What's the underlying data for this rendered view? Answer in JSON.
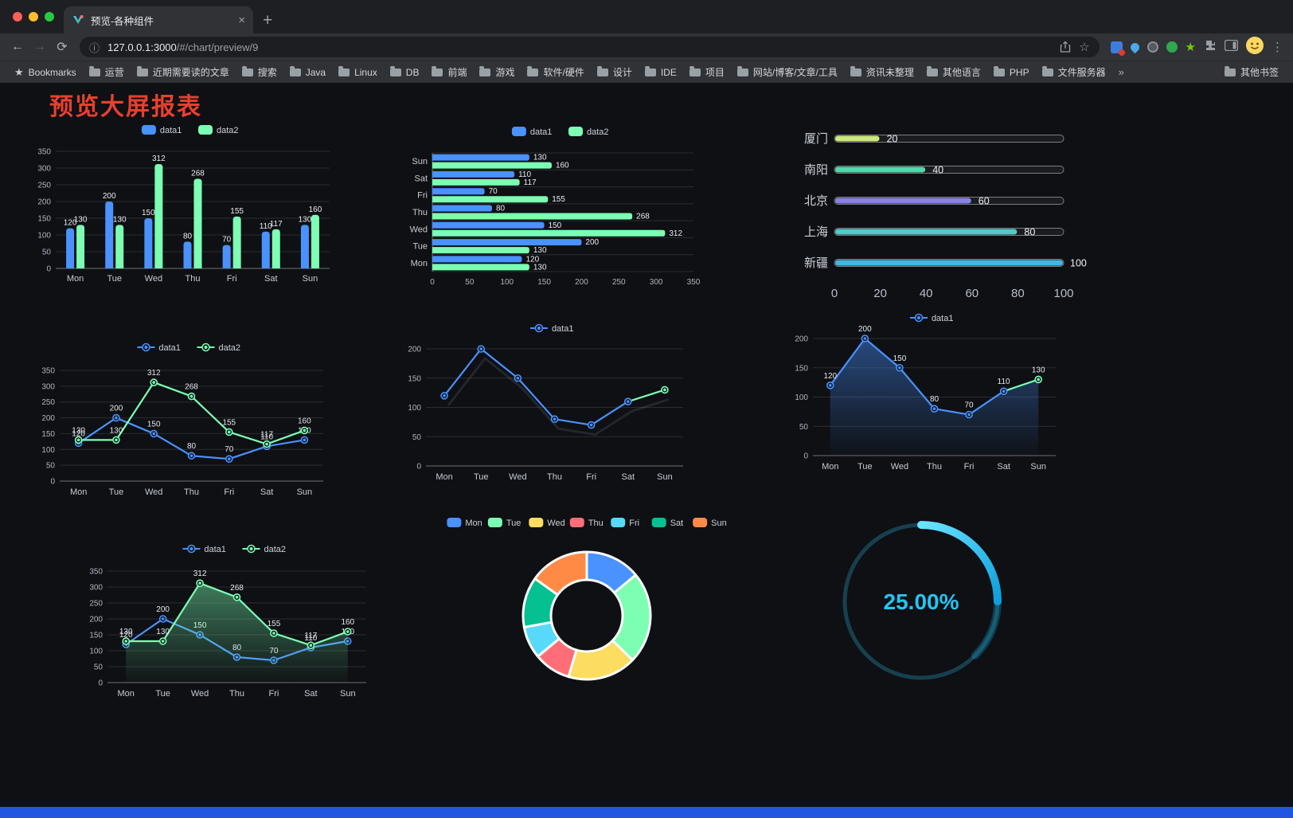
{
  "browser": {
    "tab": {
      "title": "预览-各种组件"
    },
    "url_host": "127.0.0.1:3000",
    "url_path": "/#/chart/preview/9",
    "bookmarks": {
      "label": "Bookmarks",
      "items": [
        "运营",
        "近期需要读的文章",
        "搜索",
        "Java",
        "Linux",
        "DB",
        "前端",
        "游戏",
        "软件/硬件",
        "设计",
        "IDE",
        "项目",
        "网站/博客/文章/工具",
        "资讯未整理",
        "其他语言",
        "PHP",
        "文件服务器"
      ],
      "overflow": "»",
      "other": "其他书签"
    }
  },
  "page": {
    "title": "预览大屏报表"
  },
  "chart_data": [
    {
      "type": "bar",
      "legend": [
        "data1",
        "data2"
      ],
      "categories": [
        "Mon",
        "Tue",
        "Wed",
        "Thu",
        "Fri",
        "Sat",
        "Sun"
      ],
      "series": [
        {
          "name": "data1",
          "color": "#4992ff",
          "values": [
            120,
            200,
            150,
            80,
            70,
            110,
            130
          ]
        },
        {
          "name": "data2",
          "color": "#7cffb2",
          "values": [
            130,
            130,
            312,
            268,
            155,
            117,
            160
          ]
        }
      ],
      "ylim": [
        0,
        350
      ],
      "ytick_step": 50,
      "show_labels": true
    },
    {
      "type": "hbar",
      "legend": [
        "data1",
        "data2"
      ],
      "categories": [
        "Mon",
        "Tue",
        "Wed",
        "Thu",
        "Fri",
        "Sat",
        "Sun"
      ],
      "series": [
        {
          "name": "data1",
          "color": "#4992ff",
          "values": [
            120,
            200,
            150,
            80,
            70,
            110,
            130
          ]
        },
        {
          "name": "data2",
          "color": "#7cffb2",
          "values": [
            130,
            130,
            312,
            268,
            155,
            117,
            160
          ]
        }
      ],
      "xlim": [
        0,
        350
      ],
      "xtick_step": 50,
      "show_labels": true
    },
    {
      "type": "progress",
      "items": [
        {
          "label": "厦门",
          "value": 20,
          "color": "#cde87e"
        },
        {
          "label": "南阳",
          "value": 40,
          "color": "#4fd8ab"
        },
        {
          "label": "北京",
          "value": 60,
          "color": "#8a80e8"
        },
        {
          "label": "上海",
          "value": 80,
          "color": "#55c8c8"
        },
        {
          "label": "新疆",
          "value": 100,
          "color": "#41b7e4"
        }
      ],
      "xlim": [
        0,
        100
      ],
      "xticks": [
        0,
        20,
        40,
        60,
        80,
        100
      ]
    },
    {
      "type": "line",
      "legend": [
        "data1",
        "data2"
      ],
      "categories": [
        "Mon",
        "Tue",
        "Wed",
        "Thu",
        "Fri",
        "Sat",
        "Sun"
      ],
      "series": [
        {
          "name": "data1",
          "color": "#4992ff",
          "values": [
            120,
            200,
            150,
            80,
            70,
            110,
            130
          ]
        },
        {
          "name": "data2",
          "color": "#7cffb2",
          "values": [
            130,
            130,
            312,
            268,
            155,
            117,
            160
          ]
        }
      ],
      "ylim": [
        0,
        350
      ],
      "ytick_step": 50,
      "show_labels": true
    },
    {
      "type": "line",
      "legend": [
        "data1"
      ],
      "categories": [
        "Mon",
        "Tue",
        "Wed",
        "Thu",
        "Fri",
        "Sat",
        "Sun"
      ],
      "series": [
        {
          "name": "data1",
          "color": "#4992ff",
          "last_segment_color": "#7cffb2",
          "values": [
            120,
            200,
            150,
            80,
            70,
            110,
            130
          ]
        }
      ],
      "ylim": [
        0,
        200
      ],
      "ytick_step": 50,
      "show_labels": false,
      "shadow": true
    },
    {
      "type": "line",
      "legend": [
        "data1"
      ],
      "categories": [
        "Mon",
        "Tue",
        "Wed",
        "Thu",
        "Fri",
        "Sat",
        "Sun"
      ],
      "series": [
        {
          "name": "data1",
          "color": "#4992ff",
          "last_segment_color": "#7cffb2",
          "area": true,
          "values": [
            120,
            200,
            150,
            80,
            70,
            110,
            130
          ]
        }
      ],
      "ylim": [
        0,
        200
      ],
      "ytick_step": 50,
      "show_labels": true
    },
    {
      "type": "line",
      "legend": [
        "data1",
        "data2"
      ],
      "categories": [
        "Mon",
        "Tue",
        "Wed",
        "Thu",
        "Fri",
        "Sat",
        "Sun"
      ],
      "series": [
        {
          "name": "data1",
          "color": "#4992ff",
          "values": [
            120,
            200,
            150,
            80,
            70,
            110,
            130
          ]
        },
        {
          "name": "data2",
          "color": "#7cffb2",
          "area": true,
          "values": [
            130,
            130,
            312,
            268,
            155,
            117,
            160
          ]
        }
      ],
      "ylim": [
        0,
        350
      ],
      "ytick_step": 50,
      "show_labels": true
    },
    {
      "type": "donut",
      "legend": [
        "Mon",
        "Tue",
        "Wed",
        "Thu",
        "Fri",
        "Sat",
        "Sun"
      ],
      "values": [
        120,
        200,
        150,
        80,
        70,
        110,
        130
      ],
      "colors": [
        "#4992ff",
        "#7cffb2",
        "#fddd60",
        "#ff6e76",
        "#58d9f9",
        "#05c091",
        "#ff8a45"
      ]
    },
    {
      "type": "gauge",
      "value": 25,
      "label": "25.00%",
      "color": "#24c5f2",
      "track_color": "#17404f"
    }
  ]
}
